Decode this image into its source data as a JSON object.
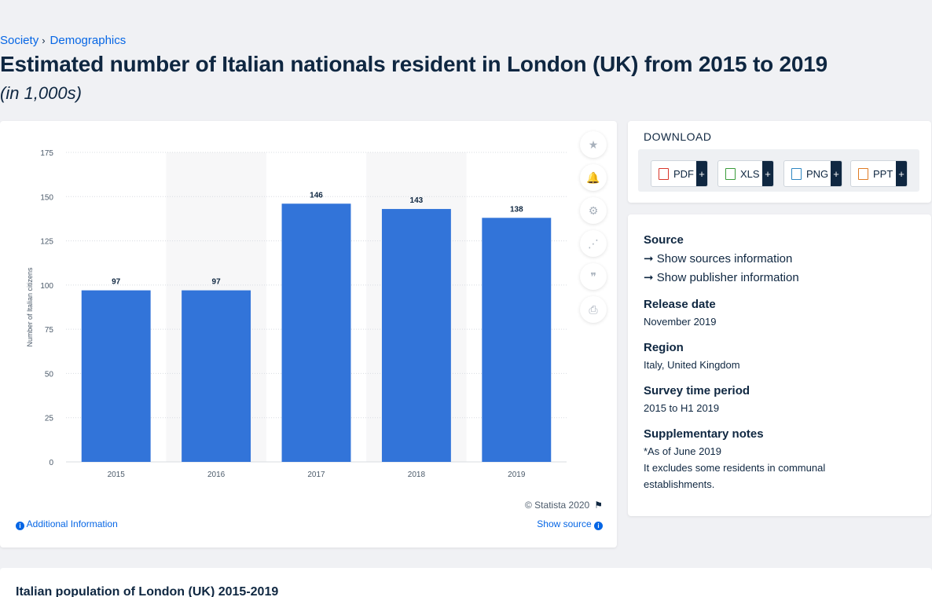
{
  "breadcrumb": {
    "level1": "Society",
    "level2": "Demographics"
  },
  "page_title": "Estimated number of Italian nationals resident in London (UK) from 2015 to 2019",
  "page_subtitle": "(in 1,000s)",
  "colors": {
    "bar": "#3274d9",
    "text": "#0f2741",
    "link": "#0666e5"
  },
  "chart_data": {
    "type": "bar",
    "categories": [
      "2015",
      "2016",
      "2017",
      "2018",
      "2019"
    ],
    "series": [
      {
        "values": [
          97,
          97,
          146,
          143,
          138
        ]
      }
    ],
    "data_labels": [
      "97",
      "97",
      "146",
      "143",
      "138"
    ],
    "ylabel": "Number of Italian citizens",
    "xlabel": "",
    "ylim": [
      0,
      175
    ],
    "yticks": [
      0,
      25,
      50,
      75,
      100,
      125,
      150,
      175
    ],
    "grid": true,
    "legend": "none"
  },
  "tools": [
    {
      "name": "star-icon",
      "glyph": "★"
    },
    {
      "name": "bell-icon",
      "glyph": "🔔"
    },
    {
      "name": "gear-icon",
      "glyph": "⚙"
    },
    {
      "name": "share-icon",
      "glyph": "⋰"
    },
    {
      "name": "quote-icon",
      "glyph": "❞"
    },
    {
      "name": "print-icon",
      "glyph": "⎙"
    }
  ],
  "credit": "© Statista 2020",
  "additional_info": "Additional Information",
  "show_source": "Show source",
  "download": {
    "title": "DOWNLOAD",
    "buttons": [
      {
        "label": "PDF",
        "color": "#d9362b"
      },
      {
        "label": "XLS",
        "color": "#3a9b3a"
      },
      {
        "label": "PNG",
        "color": "#2e86c1"
      },
      {
        "label": "PPT",
        "color": "#e07b24"
      }
    ],
    "plus": "+"
  },
  "source": {
    "heading": "Source",
    "sources_link": "Show sources information",
    "publisher_link": "Show publisher information",
    "release_heading": "Release date",
    "release_value": "November 2019",
    "region_heading": "Region",
    "region_value": "Italy, United Kingdom",
    "survey_heading": "Survey time period",
    "survey_value": "2015 to H1 2019",
    "notes_heading": "Supplementary notes",
    "notes_line1": "*As of June 2019",
    "notes_line2": "It excludes some residents in communal establishments."
  },
  "bottom_title": "Italian population of London (UK) 2015-2019"
}
